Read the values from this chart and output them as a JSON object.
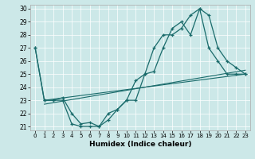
{
  "title": "",
  "xlabel": "Humidex (Indice chaleur)",
  "bg_color": "#cce8e8",
  "line_color": "#1a6b6b",
  "xlim": [
    -0.5,
    23.5
  ],
  "ylim": [
    20.7,
    30.3
  ],
  "yticks": [
    21,
    22,
    23,
    24,
    25,
    26,
    27,
    28,
    29,
    30
  ],
  "xticks": [
    0,
    1,
    2,
    3,
    4,
    5,
    6,
    7,
    8,
    9,
    10,
    11,
    12,
    13,
    14,
    15,
    16,
    17,
    18,
    19,
    20,
    21,
    22,
    23
  ],
  "line1_x": [
    0,
    1,
    2,
    3,
    4,
    5,
    6,
    7,
    8,
    9,
    10,
    11,
    12,
    13,
    14,
    15,
    16,
    17,
    18,
    19,
    20,
    21,
    22,
    23
  ],
  "line1_y": [
    27,
    23,
    23,
    23.2,
    22,
    21.2,
    21.3,
    21.0,
    21.5,
    22.3,
    23.0,
    23.0,
    25.0,
    25.2,
    27.0,
    28.5,
    29.0,
    28.0,
    30.0,
    29.5,
    27.0,
    26.0,
    25.5,
    25.0
  ],
  "line2_x": [
    0,
    1,
    2,
    3,
    4,
    5,
    6,
    7,
    8,
    9,
    10,
    11,
    12,
    13,
    14,
    15,
    16,
    17,
    18,
    19,
    20,
    21,
    22,
    23
  ],
  "line2_y": [
    27,
    23,
    23,
    23,
    21.2,
    21.0,
    21.0,
    21.0,
    22.0,
    22.3,
    23.0,
    24.5,
    25.0,
    27.0,
    28.0,
    28.0,
    28.5,
    29.5,
    30.0,
    27.0,
    26.0,
    25.0,
    25.0,
    25.0
  ],
  "line3_x": [
    1,
    23
  ],
  "line3_y": [
    23.0,
    25.0
  ],
  "line4_x": [
    1,
    23
  ],
  "line4_y": [
    22.7,
    25.3
  ]
}
